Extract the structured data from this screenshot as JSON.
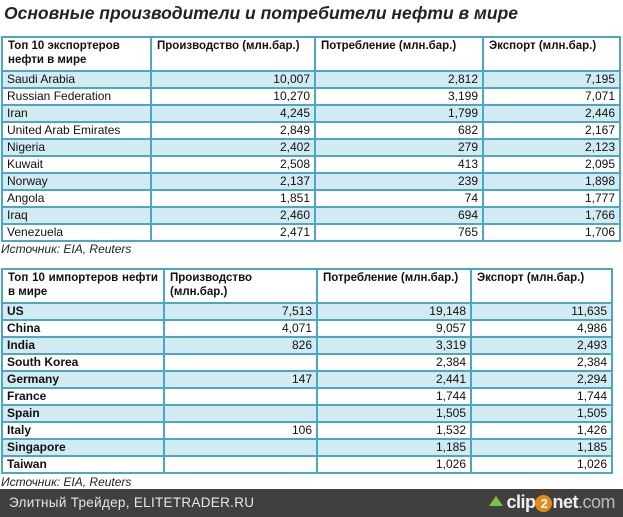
{
  "title": "Основные производители и потребители нефти в  мире",
  "exporters": {
    "headers": [
      "Топ 10 экспортеров нефти в мире",
      "Производство (млн.бар.)",
      "Потребление (млн.бар.)",
      "Экспорт (млн.бар.)"
    ],
    "rows": [
      [
        "Saudi Arabia",
        "10,007",
        "2,812",
        "7,195"
      ],
      [
        "Russian Federation",
        "10,270",
        "3,199",
        "7,071"
      ],
      [
        "Iran",
        "4,245",
        "1,799",
        "2,446"
      ],
      [
        "United Arab Emirates",
        "2,849",
        "682",
        "2,167"
      ],
      [
        "Nigeria",
        "2,402",
        "279",
        "2,123"
      ],
      [
        "Kuwait",
        "2,508",
        "413",
        "2,095"
      ],
      [
        "Norway",
        "2,137",
        "239",
        "1,898"
      ],
      [
        "Angola",
        "1,851",
        "74",
        "1,777"
      ],
      [
        "Iraq",
        "2,460",
        "694",
        "1,766"
      ],
      [
        "Venezuela",
        "2,471",
        "765",
        "1,706"
      ]
    ],
    "source": "Источник: EIA, Reuters"
  },
  "importers": {
    "headers": [
      "Топ 10 импортеров нефти в мире",
      "Производство (млн.бар.)",
      "Потребление (млн.бар.)",
      "Экспорт (млн.бар.)"
    ],
    "rows": [
      [
        "US",
        "7,513",
        "19,148",
        "11,635"
      ],
      [
        "China",
        "4,071",
        "9,057",
        "4,986"
      ],
      [
        "India",
        "826",
        "3,319",
        "2,493"
      ],
      [
        "South Korea",
        "",
        "2,384",
        "2,384"
      ],
      [
        "Germany",
        "147",
        "2,441",
        "2,294"
      ],
      [
        "France",
        "",
        "1,744",
        "1,744"
      ],
      [
        "Spain",
        "",
        "1,505",
        "1,505"
      ],
      [
        "Italy",
        "106",
        "1,532",
        "1,426"
      ],
      [
        "Singapore",
        "",
        "1,185",
        "1,185"
      ],
      [
        "Taiwan",
        "",
        "1,026",
        "1,026"
      ]
    ],
    "source": "Источник: EIA, Reuters"
  },
  "footer": {
    "text": "Элитный Трейдер, ELITETRADER.RU",
    "logo": "clip2net.com"
  },
  "colors": {
    "border": "#4aa8c0",
    "stripe": "#d2eaf2",
    "footer": "#404040"
  }
}
